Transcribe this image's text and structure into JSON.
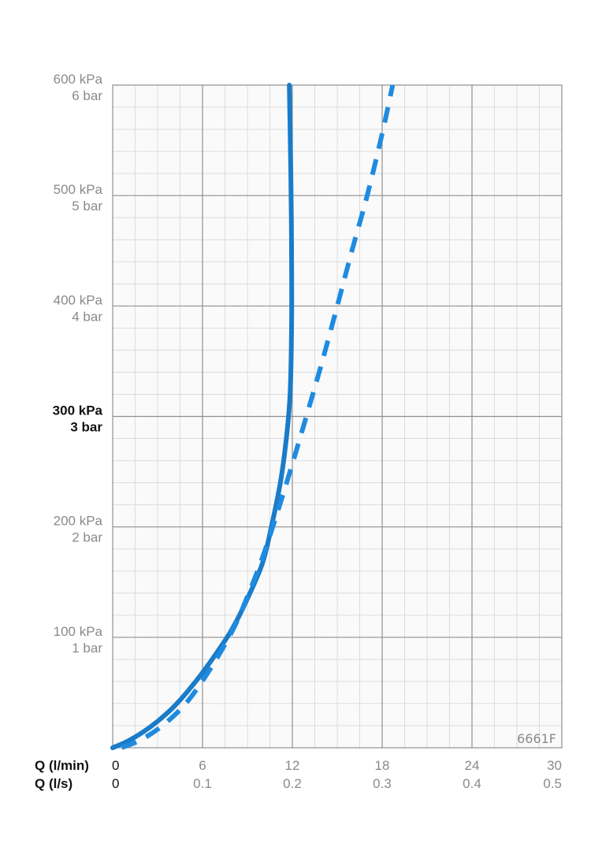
{
  "chart_data": {
    "type": "line",
    "x_axis_headers": [
      "Q (l/min)",
      "Q (l/s)"
    ],
    "x_ticks_lmin": [
      "0",
      "6",
      "12",
      "18",
      "24",
      "30"
    ],
    "x_ticks_ls": [
      "0",
      "0.1",
      "0.2",
      "0.3",
      "0.4",
      "0.5"
    ],
    "xlim": [
      0,
      30
    ],
    "ylim": [
      0,
      600
    ],
    "y_ticks": [
      {
        "value": 100,
        "kpa": "100 kPa",
        "bar": "1 bar",
        "bold": false
      },
      {
        "value": 200,
        "kpa": "200 kPa",
        "bar": "2 bar",
        "bold": false
      },
      {
        "value": 300,
        "kpa": "300 kPa",
        "bar": "3 bar",
        "bold": true
      },
      {
        "value": 400,
        "kpa": "400 kPa",
        "bar": "4 bar",
        "bold": false
      },
      {
        "value": 500,
        "kpa": "500 kPa",
        "bar": "5 bar",
        "bold": false
      },
      {
        "value": 600,
        "kpa": "600 kPa",
        "bar": "6 bar",
        "bold": false
      }
    ],
    "grid": true,
    "code_label": "6661F",
    "series": [
      {
        "style": "solid",
        "color": "#1a7cc9",
        "points": [
          [
            0,
            0
          ],
          [
            1,
            6
          ],
          [
            2,
            14
          ],
          [
            3,
            24
          ],
          [
            4,
            36
          ],
          [
            5,
            51
          ],
          [
            6,
            68
          ],
          [
            7,
            87
          ],
          [
            8,
            108
          ],
          [
            9,
            135
          ],
          [
            10,
            167
          ],
          [
            10.6,
            200
          ],
          [
            11.2,
            240
          ],
          [
            11.6,
            280
          ],
          [
            11.85,
            320
          ],
          [
            11.95,
            380
          ],
          [
            11.95,
            450
          ],
          [
            11.9,
            520
          ],
          [
            11.8,
            600
          ]
        ]
      },
      {
        "style": "dashed",
        "color": "#1f8be0",
        "points": [
          [
            0.6,
            0
          ],
          [
            2,
            8
          ],
          [
            3.5,
            22
          ],
          [
            5,
            42
          ],
          [
            6.5,
            71
          ],
          [
            8,
            106
          ],
          [
            9,
            137
          ],
          [
            10,
            172
          ],
          [
            11,
            213
          ],
          [
            12,
            257
          ],
          [
            13,
            303
          ],
          [
            14,
            350
          ],
          [
            15,
            400
          ],
          [
            16,
            451
          ],
          [
            17,
            500
          ],
          [
            18,
            556
          ],
          [
            18.7,
            600
          ]
        ]
      }
    ]
  }
}
